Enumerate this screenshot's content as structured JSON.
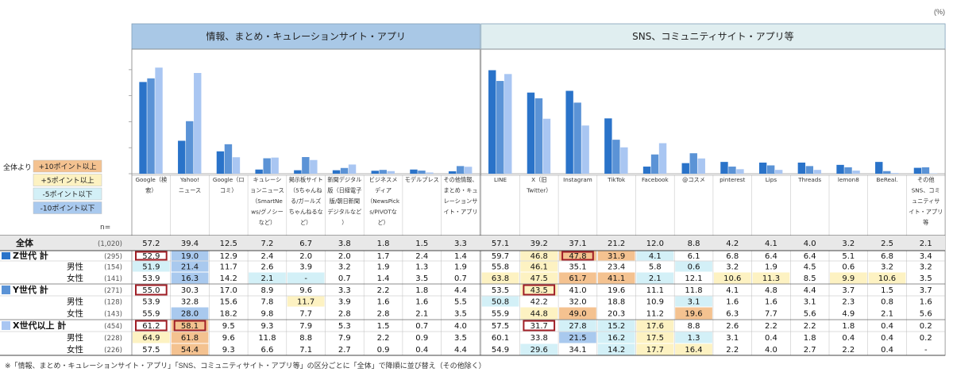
{
  "unit_label": "(%)",
  "footnote": "※「情報、まとめ・キュレーションサイト・アプリ」「SNS、コミュニティサイト・アプリ等」の区分ごとに「全体」で降順に並び替え（その他除く）",
  "n_label": "n=",
  "legend": {
    "title": "全体より",
    "items": [
      {
        "label": "+10ポイント以上",
        "color": "#f4c290"
      },
      {
        "label": "+5ポイント以上",
        "color": "#fdf2c2"
      },
      {
        "label": "-5ポイント以下",
        "color": "#d3f0f7"
      },
      {
        "label": "-10ポイント以下",
        "color": "#a9c9ee"
      }
    ]
  },
  "colors": {
    "series_z": "#2a73c9",
    "series_y": "#5b93d6",
    "series_x": "#a9c6f2",
    "section1_header_bg": "#a9c8e6",
    "section2_header_bg": "#e0eef0",
    "highlight_border": "#a01e26",
    "row_total_bg": "#e8e8e8"
  },
  "chart_data": {
    "type": "table",
    "sections": [
      {
        "title": "情報、まとめ・キュレーションサイト・アプリ",
        "start": 0,
        "count": 9
      },
      {
        "title": "SNS、コミュニティサイト・アプリ等",
        "start": 9,
        "count": 12
      }
    ],
    "columns": [
      {
        "label": "Google（検索）",
        "lines": [
          "Google（検",
          "索）"
        ]
      },
      {
        "label": "Yahoo!ニュース",
        "lines": [
          "Yahoo!",
          "ニュース"
        ]
      },
      {
        "label": "Google（ロコミ）",
        "lines": [
          "Google（ロ",
          "コミ）"
        ]
      },
      {
        "label": "キュレーションニュース（SmartNews/グノシーなど）",
        "lines": [
          "キュレーシ",
          "ョンニュース",
          "（SmartNe",
          "ws/グノシー",
          "など）"
        ]
      },
      {
        "label": "掲示板サイト（5ちゃんねる/ガールズちゃんねるなど）",
        "lines": [
          "掲示板サイト",
          "（5ちゃんね",
          "る/ガールズ",
          "ちゃんねるな",
          "ど）"
        ]
      },
      {
        "label": "新聞デジタル版（日経電子版/朝日新聞デジタルなど）",
        "lines": [
          "新聞デジタル",
          "版（日経電子",
          "版/朝日新聞",
          "デジタルなど",
          "）"
        ]
      },
      {
        "label": "ビジネスメディア（NewsPicks/PIVOTなど）",
        "lines": [
          "ビジネスメ",
          "ディア",
          "（NewsPick",
          "s/PIVOTな",
          "ど）"
        ]
      },
      {
        "label": "モデルプレス",
        "lines": [
          "モデルプレス"
        ]
      },
      {
        "label": "その他情報、まとめ・キュレーションサイト・アプリ",
        "lines": [
          "その他情報、",
          "まとめ・キュ",
          "レーションサ",
          "イト・アプリ"
        ]
      },
      {
        "label": "LINE",
        "lines": [
          "LINE"
        ]
      },
      {
        "label": "X（旧Twitter）",
        "lines": [
          "X（旧",
          "Twitter）"
        ]
      },
      {
        "label": "Instagram",
        "lines": [
          "Instagram"
        ]
      },
      {
        "label": "TikTok",
        "lines": [
          "TikTok"
        ]
      },
      {
        "label": "Facebook",
        "lines": [
          "Facebook"
        ]
      },
      {
        "label": "@コスメ",
        "lines": [
          "@コスメ"
        ]
      },
      {
        "label": "pinterest",
        "lines": [
          "pinterest"
        ]
      },
      {
        "label": "Lips",
        "lines": [
          "Lips"
        ]
      },
      {
        "label": "Threads",
        "lines": [
          "Threads"
        ]
      },
      {
        "label": "lemon8",
        "lines": [
          "lemon8"
        ]
      },
      {
        "label": "BeReal.",
        "lines": [
          "BeReal."
        ]
      },
      {
        "label": "その他SNS、コミュニティサイト・アプリ等",
        "lines": [
          "その他",
          "SNS、コミ",
          "ュニティサ",
          "イト・アプリ",
          "等"
        ]
      }
    ],
    "rows": [
      {
        "label": "全体",
        "n": "(1,020)",
        "kind": "total",
        "values": [
          "57.2",
          "39.4",
          "12.5",
          "7.2",
          "6.7",
          "3.8",
          "1.8",
          "1.5",
          "3.3",
          "57.1",
          "39.2",
          "37.1",
          "21.2",
          "12.0",
          "8.8",
          "4.2",
          "4.1",
          "4.0",
          "3.2",
          "2.5",
          "2.1"
        ],
        "shades": [
          "",
          "",
          "",
          "",
          "",
          "",
          "",
          "",
          "",
          "",
          "",
          "",
          "",
          "",
          "",
          "",
          "",
          "",
          "",
          "",
          ""
        ],
        "boxed": []
      },
      {
        "label": "Z世代 計",
        "n": "(295)",
        "kind": "group",
        "marker": "z",
        "values": [
          "52.9",
          "19.0",
          "12.9",
          "2.4",
          "2.0",
          "2.0",
          "1.7",
          "2.4",
          "1.4",
          "59.7",
          "46.8",
          "47.8",
          "31.9",
          "4.1",
          "6.1",
          "6.8",
          "6.4",
          "6.4",
          "5.1",
          "6.8",
          "3.4"
        ],
        "shades": [
          "",
          "m10",
          "",
          "",
          "",
          "",
          "",
          "",
          "",
          "",
          "p5",
          "p10",
          "p10",
          "m5",
          "",
          "",
          "",
          "",
          "",
          "",
          ""
        ],
        "boxed": [
          0,
          11
        ]
      },
      {
        "label": "男性",
        "n": "(154)",
        "kind": "sub",
        "values": [
          "51.9",
          "21.4",
          "11.7",
          "2.6",
          "3.9",
          "3.2",
          "1.9",
          "1.3",
          "1.9",
          "55.8",
          "46.1",
          "35.1",
          "23.4",
          "5.8",
          "0.6",
          "3.2",
          "1.9",
          "4.5",
          "0.6",
          "3.2",
          "3.2"
        ],
        "shades": [
          "m5",
          "m10",
          "",
          "",
          "",
          "",
          "",
          "",
          "",
          "",
          "p5",
          "",
          "",
          "",
          "m5",
          "",
          "",
          "",
          "",
          "",
          ""
        ],
        "boxed": []
      },
      {
        "label": "女性",
        "n": "(141)",
        "kind": "sub",
        "values": [
          "53.9",
          "16.3",
          "14.2",
          "2.1",
          "-",
          "0.7",
          "1.4",
          "3.5",
          "0.7",
          "63.8",
          "47.5",
          "61.7",
          "41.1",
          "2.1",
          "12.1",
          "10.6",
          "11.3",
          "8.5",
          "9.9",
          "10.6",
          "3.5"
        ],
        "shades": [
          "",
          "m10",
          "",
          "m5",
          "m5",
          "",
          "",
          "",
          "",
          "p5",
          "p5",
          "p10",
          "p10",
          "m5",
          "",
          "p5",
          "p5",
          "",
          "p5",
          "p5",
          ""
        ],
        "boxed": []
      },
      {
        "label": "Y世代 計",
        "n": "(271)",
        "kind": "group",
        "marker": "y",
        "values": [
          "55.0",
          "30.3",
          "17.0",
          "8.9",
          "9.6",
          "3.3",
          "2.2",
          "1.8",
          "4.4",
          "53.5",
          "43.5",
          "41.0",
          "19.6",
          "11.1",
          "11.8",
          "4.1",
          "4.8",
          "4.4",
          "3.7",
          "1.5",
          "3.7"
        ],
        "shades": [
          "",
          "",
          "",
          "",
          "",
          "",
          "",
          "",
          "",
          "",
          "p5",
          "",
          "",
          "",
          "",
          "",
          "",
          "",
          "",
          "",
          ""
        ],
        "boxed": [
          0,
          10
        ]
      },
      {
        "label": "男性",
        "n": "(128)",
        "kind": "sub",
        "values": [
          "53.9",
          "32.8",
          "15.6",
          "7.8",
          "11.7",
          "3.9",
          "1.6",
          "1.6",
          "5.5",
          "50.8",
          "42.2",
          "32.0",
          "18.8",
          "10.9",
          "3.1",
          "1.6",
          "1.6",
          "3.1",
          "2.3",
          "0.8",
          "1.6"
        ],
        "shades": [
          "",
          "",
          "",
          "",
          "p5",
          "",
          "",
          "",
          "",
          "m5",
          "",
          "",
          "",
          "",
          "m5",
          "",
          "",
          "",
          "",
          "",
          ""
        ],
        "boxed": []
      },
      {
        "label": "女性",
        "n": "(143)",
        "kind": "sub",
        "values": [
          "55.9",
          "28.0",
          "18.2",
          "9.8",
          "7.7",
          "2.8",
          "2.8",
          "2.1",
          "3.5",
          "55.9",
          "44.8",
          "49.0",
          "20.3",
          "11.2",
          "19.6",
          "6.3",
          "7.7",
          "5.6",
          "4.9",
          "2.1",
          "5.6"
        ],
        "shades": [
          "",
          "m10",
          "",
          "",
          "",
          "",
          "",
          "",
          "",
          "",
          "p5",
          "p10",
          "",
          "",
          "p10",
          "",
          "",
          "",
          "",
          "",
          ""
        ],
        "boxed": []
      },
      {
        "label": "X世代以上 計",
        "n": "(454)",
        "kind": "group",
        "marker": "x",
        "values": [
          "61.2",
          "58.1",
          "9.5",
          "9.3",
          "7.9",
          "5.3",
          "1.5",
          "0.7",
          "4.0",
          "57.5",
          "31.7",
          "27.8",
          "15.2",
          "17.6",
          "8.8",
          "2.6",
          "2.2",
          "2.2",
          "1.8",
          "0.4",
          "0.2"
        ],
        "shades": [
          "",
          "p10",
          "",
          "",
          "",
          "",
          "",
          "",
          "",
          "",
          "",
          "m5",
          "m5",
          "p5",
          "",
          "",
          "",
          "",
          "",
          "",
          ""
        ],
        "boxed": [
          0,
          1,
          10
        ]
      },
      {
        "label": "男性",
        "n": "(228)",
        "kind": "sub",
        "values": [
          "64.9",
          "61.8",
          "9.6",
          "11.8",
          "8.8",
          "7.9",
          "2.2",
          "0.9",
          "3.5",
          "60.1",
          "33.8",
          "21.5",
          "16.2",
          "17.5",
          "1.3",
          "3.1",
          "0.4",
          "1.8",
          "0.4",
          "0.4",
          "0.2"
        ],
        "shades": [
          "p5",
          "p10",
          "",
          "",
          "",
          "",
          "",
          "",
          "",
          "",
          "",
          "m10",
          "m5",
          "p5",
          "m5",
          "",
          "",
          "",
          "",
          "",
          ""
        ],
        "boxed": []
      },
      {
        "label": "女性",
        "n": "(226)",
        "kind": "sub",
        "values": [
          "57.5",
          "54.4",
          "9.3",
          "6.6",
          "7.1",
          "2.7",
          "0.9",
          "0.4",
          "4.4",
          "54.9",
          "29.6",
          "34.1",
          "14.2",
          "17.7",
          "16.4",
          "2.2",
          "4.0",
          "2.7",
          "2.2",
          "0.4",
          "-"
        ],
        "shades": [
          "",
          "p10",
          "",
          "",
          "",
          "",
          "",
          "",
          "",
          "",
          "m5",
          "",
          "m5",
          "p5",
          "p5",
          "",
          "",
          "",
          "",
          "",
          ""
        ],
        "boxed": []
      }
    ],
    "bar_series": [
      {
        "name": "Z世代 計",
        "key": "z",
        "row": 1
      },
      {
        "name": "Y世代 計",
        "key": "y",
        "row": 4
      },
      {
        "name": "X世代以上 計",
        "key": "x",
        "row": 7
      }
    ],
    "bar_ylim": [
      0,
      70
    ],
    "grid": false
  }
}
